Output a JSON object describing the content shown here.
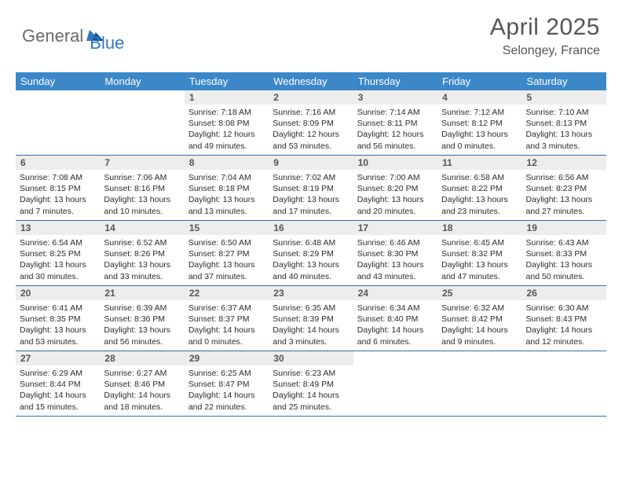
{
  "logo": {
    "text1": "General",
    "text2": "Blue"
  },
  "title": "April 2025",
  "location": "Selongey, France",
  "colors": {
    "header_bg": "#3b87c8",
    "header_text": "#ffffff",
    "daynum_bg": "#ededed",
    "daynum_text": "#555555",
    "body_text": "#2b2b2b",
    "row_border": "#2f6fa8",
    "title_color": "#555555",
    "logo_gray": "#6a6a6a",
    "logo_blue": "#2f7abf"
  },
  "dayNames": [
    "Sunday",
    "Monday",
    "Tuesday",
    "Wednesday",
    "Thursday",
    "Friday",
    "Saturday"
  ],
  "weeks": [
    [
      {
        "empty": true
      },
      {
        "empty": true
      },
      {
        "num": "1",
        "sunrise": "7:18 AM",
        "sunset": "8:08 PM",
        "daylight": "12 hours and 49 minutes."
      },
      {
        "num": "2",
        "sunrise": "7:16 AM",
        "sunset": "8:09 PM",
        "daylight": "12 hours and 53 minutes."
      },
      {
        "num": "3",
        "sunrise": "7:14 AM",
        "sunset": "8:11 PM",
        "daylight": "12 hours and 56 minutes."
      },
      {
        "num": "4",
        "sunrise": "7:12 AM",
        "sunset": "8:12 PM",
        "daylight": "13 hours and 0 minutes."
      },
      {
        "num": "5",
        "sunrise": "7:10 AM",
        "sunset": "8:13 PM",
        "daylight": "13 hours and 3 minutes."
      }
    ],
    [
      {
        "num": "6",
        "sunrise": "7:08 AM",
        "sunset": "8:15 PM",
        "daylight": "13 hours and 7 minutes."
      },
      {
        "num": "7",
        "sunrise": "7:06 AM",
        "sunset": "8:16 PM",
        "daylight": "13 hours and 10 minutes."
      },
      {
        "num": "8",
        "sunrise": "7:04 AM",
        "sunset": "8:18 PM",
        "daylight": "13 hours and 13 minutes."
      },
      {
        "num": "9",
        "sunrise": "7:02 AM",
        "sunset": "8:19 PM",
        "daylight": "13 hours and 17 minutes."
      },
      {
        "num": "10",
        "sunrise": "7:00 AM",
        "sunset": "8:20 PM",
        "daylight": "13 hours and 20 minutes."
      },
      {
        "num": "11",
        "sunrise": "6:58 AM",
        "sunset": "8:22 PM",
        "daylight": "13 hours and 23 minutes."
      },
      {
        "num": "12",
        "sunrise": "6:56 AM",
        "sunset": "8:23 PM",
        "daylight": "13 hours and 27 minutes."
      }
    ],
    [
      {
        "num": "13",
        "sunrise": "6:54 AM",
        "sunset": "8:25 PM",
        "daylight": "13 hours and 30 minutes."
      },
      {
        "num": "14",
        "sunrise": "6:52 AM",
        "sunset": "8:26 PM",
        "daylight": "13 hours and 33 minutes."
      },
      {
        "num": "15",
        "sunrise": "6:50 AM",
        "sunset": "8:27 PM",
        "daylight": "13 hours and 37 minutes."
      },
      {
        "num": "16",
        "sunrise": "6:48 AM",
        "sunset": "8:29 PM",
        "daylight": "13 hours and 40 minutes."
      },
      {
        "num": "17",
        "sunrise": "6:46 AM",
        "sunset": "8:30 PM",
        "daylight": "13 hours and 43 minutes."
      },
      {
        "num": "18",
        "sunrise": "6:45 AM",
        "sunset": "8:32 PM",
        "daylight": "13 hours and 47 minutes."
      },
      {
        "num": "19",
        "sunrise": "6:43 AM",
        "sunset": "8:33 PM",
        "daylight": "13 hours and 50 minutes."
      }
    ],
    [
      {
        "num": "20",
        "sunrise": "6:41 AM",
        "sunset": "8:35 PM",
        "daylight": "13 hours and 53 minutes."
      },
      {
        "num": "21",
        "sunrise": "6:39 AM",
        "sunset": "8:36 PM",
        "daylight": "13 hours and 56 minutes."
      },
      {
        "num": "22",
        "sunrise": "6:37 AM",
        "sunset": "8:37 PM",
        "daylight": "14 hours and 0 minutes."
      },
      {
        "num": "23",
        "sunrise": "6:35 AM",
        "sunset": "8:39 PM",
        "daylight": "14 hours and 3 minutes."
      },
      {
        "num": "24",
        "sunrise": "6:34 AM",
        "sunset": "8:40 PM",
        "daylight": "14 hours and 6 minutes."
      },
      {
        "num": "25",
        "sunrise": "6:32 AM",
        "sunset": "8:42 PM",
        "daylight": "14 hours and 9 minutes."
      },
      {
        "num": "26",
        "sunrise": "6:30 AM",
        "sunset": "8:43 PM",
        "daylight": "14 hours and 12 minutes."
      }
    ],
    [
      {
        "num": "27",
        "sunrise": "6:29 AM",
        "sunset": "8:44 PM",
        "daylight": "14 hours and 15 minutes."
      },
      {
        "num": "28",
        "sunrise": "6:27 AM",
        "sunset": "8:46 PM",
        "daylight": "14 hours and 18 minutes."
      },
      {
        "num": "29",
        "sunrise": "6:25 AM",
        "sunset": "8:47 PM",
        "daylight": "14 hours and 22 minutes."
      },
      {
        "num": "30",
        "sunrise": "6:23 AM",
        "sunset": "8:49 PM",
        "daylight": "14 hours and 25 minutes."
      },
      {
        "empty": true
      },
      {
        "empty": true
      },
      {
        "empty": true
      }
    ]
  ],
  "labels": {
    "sunrise": "Sunrise:",
    "sunset": "Sunset:",
    "daylight": "Daylight:"
  }
}
